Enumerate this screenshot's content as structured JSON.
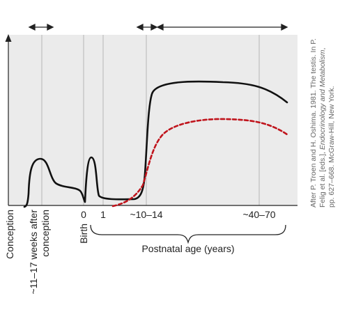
{
  "colors": {
    "plot_bg": "#ebebeb",
    "gridline": "#b5b5b5",
    "axis": "#222222",
    "solid_curve": "#111111",
    "dashed_curve": "#c0141c",
    "credit_text": "#666666"
  },
  "chart_data": {
    "type": "line",
    "title": "",
    "ylabel": "Conception",
    "xlabel": "Postnatal age (years)",
    "axis_style": "break between prenatal and postnatal segments",
    "x_ticks": [
      {
        "key": "t1117",
        "label": "~11–17 weeks after conception",
        "rotated": true
      },
      {
        "key": "t0",
        "label": "0",
        "rotated": false
      },
      {
        "key": "birth",
        "label": "Birth",
        "rotated": true
      },
      {
        "key": "t1",
        "label": "1",
        "rotated": false
      },
      {
        "key": "t1014",
        "label": "~10–14",
        "rotated": false
      },
      {
        "key": "t4070",
        "label": "~40–70",
        "rotated": false
      }
    ],
    "markers": [
      {
        "name": "fetal-window-arrow",
        "type": "double-arrow",
        "span": "~11–17 weeks"
      },
      {
        "name": "puberty-window-arrow",
        "type": "double-arrow",
        "span": "~10–14"
      },
      {
        "name": "adult-window-arrow",
        "type": "double-arrow",
        "span": "after ~14"
      }
    ],
    "series": [
      {
        "style": "solid",
        "color": "#111111",
        "points": [
          {
            "x": "conception",
            "y": 0.0
          },
          {
            "x": "~8 weeks",
            "y": 0.2
          },
          {
            "x": "~11 weeks",
            "y": 0.48
          },
          {
            "x": "~14 weeks",
            "y": 0.52
          },
          {
            "x": "~17 weeks",
            "y": 0.4
          },
          {
            "x": "~24 weeks",
            "y": 0.18
          },
          {
            "x": "~38 weeks",
            "y": 0.1
          },
          {
            "x": "birth",
            "y": 0.03
          },
          {
            "x": "2 months",
            "y": 0.48
          },
          {
            "x": "4 months",
            "y": 0.2
          },
          {
            "x": "1",
            "y": 0.05
          },
          {
            "x": "8",
            "y": 0.06
          },
          {
            "x": "12",
            "y": 0.6
          },
          {
            "x": "16",
            "y": 1.35
          },
          {
            "x": "30",
            "y": 1.45
          },
          {
            "x": "50",
            "y": 1.43
          },
          {
            "x": "70",
            "y": 1.15
          }
        ]
      },
      {
        "style": "dashed",
        "color": "#c0141c",
        "points": [
          {
            "x": "~3",
            "y": 0.0
          },
          {
            "x": "8",
            "y": 0.12
          },
          {
            "x": "12",
            "y": 0.45
          },
          {
            "x": "16",
            "y": 0.9
          },
          {
            "x": "30",
            "y": 1.05
          },
          {
            "x": "50",
            "y": 1.03
          },
          {
            "x": "70",
            "y": 0.8
          }
        ]
      }
    ]
  },
  "credit": {
    "line1": "After P. Troen and H. Oshima. 1981. The testis. In P.",
    "line2": "Felig et al. [eds.], Endocrinology and Metabolism,",
    "line3": "pp. 627–668. McGraw-Hill, New York."
  }
}
